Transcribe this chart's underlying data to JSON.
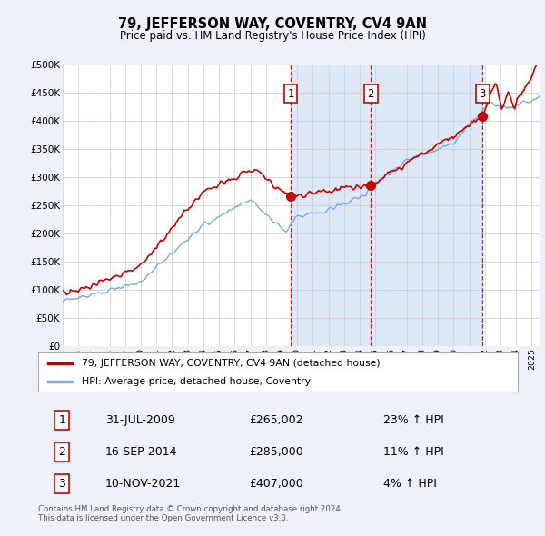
{
  "title": "79, JEFFERSON WAY, COVENTRY, CV4 9AN",
  "subtitle": "Price paid vs. HM Land Registry's House Price Index (HPI)",
  "red_label": "79, JEFFERSON WAY, COVENTRY, CV4 9AN (detached house)",
  "blue_label": "HPI: Average price, detached house, Coventry",
  "footnote": "Contains HM Land Registry data © Crown copyright and database right 2024.\nThis data is licensed under the Open Government Licence v3.0.",
  "transactions": [
    {
      "num": 1,
      "date": "31-JUL-2009",
      "price": "£265,002",
      "change": "23% ↑ HPI",
      "year": 2009.58
    },
    {
      "num": 2,
      "date": "16-SEP-2014",
      "price": "£285,000",
      "change": "11% ↑ HPI",
      "year": 2014.71
    },
    {
      "num": 3,
      "date": "10-NOV-2021",
      "price": "£407,000",
      "change": "4% ↑ HPI",
      "year": 2021.86
    }
  ],
  "ylim": [
    0,
    500000
  ],
  "yticks": [
    0,
    50000,
    100000,
    150000,
    200000,
    250000,
    300000,
    350000,
    400000,
    450000,
    500000
  ],
  "ytick_labels": [
    "£0",
    "£50K",
    "£100K",
    "£150K",
    "£200K",
    "£250K",
    "£300K",
    "£350K",
    "£400K",
    "£450K",
    "£500K"
  ],
  "bg_color": "#eef2f8",
  "plot_bg": "#ffffff",
  "shade_color": "#dce8f5",
  "red_color": "#cc0000",
  "blue_color": "#7aadda",
  "vline_color": "#cc0000",
  "grid_color": "#cccccc"
}
